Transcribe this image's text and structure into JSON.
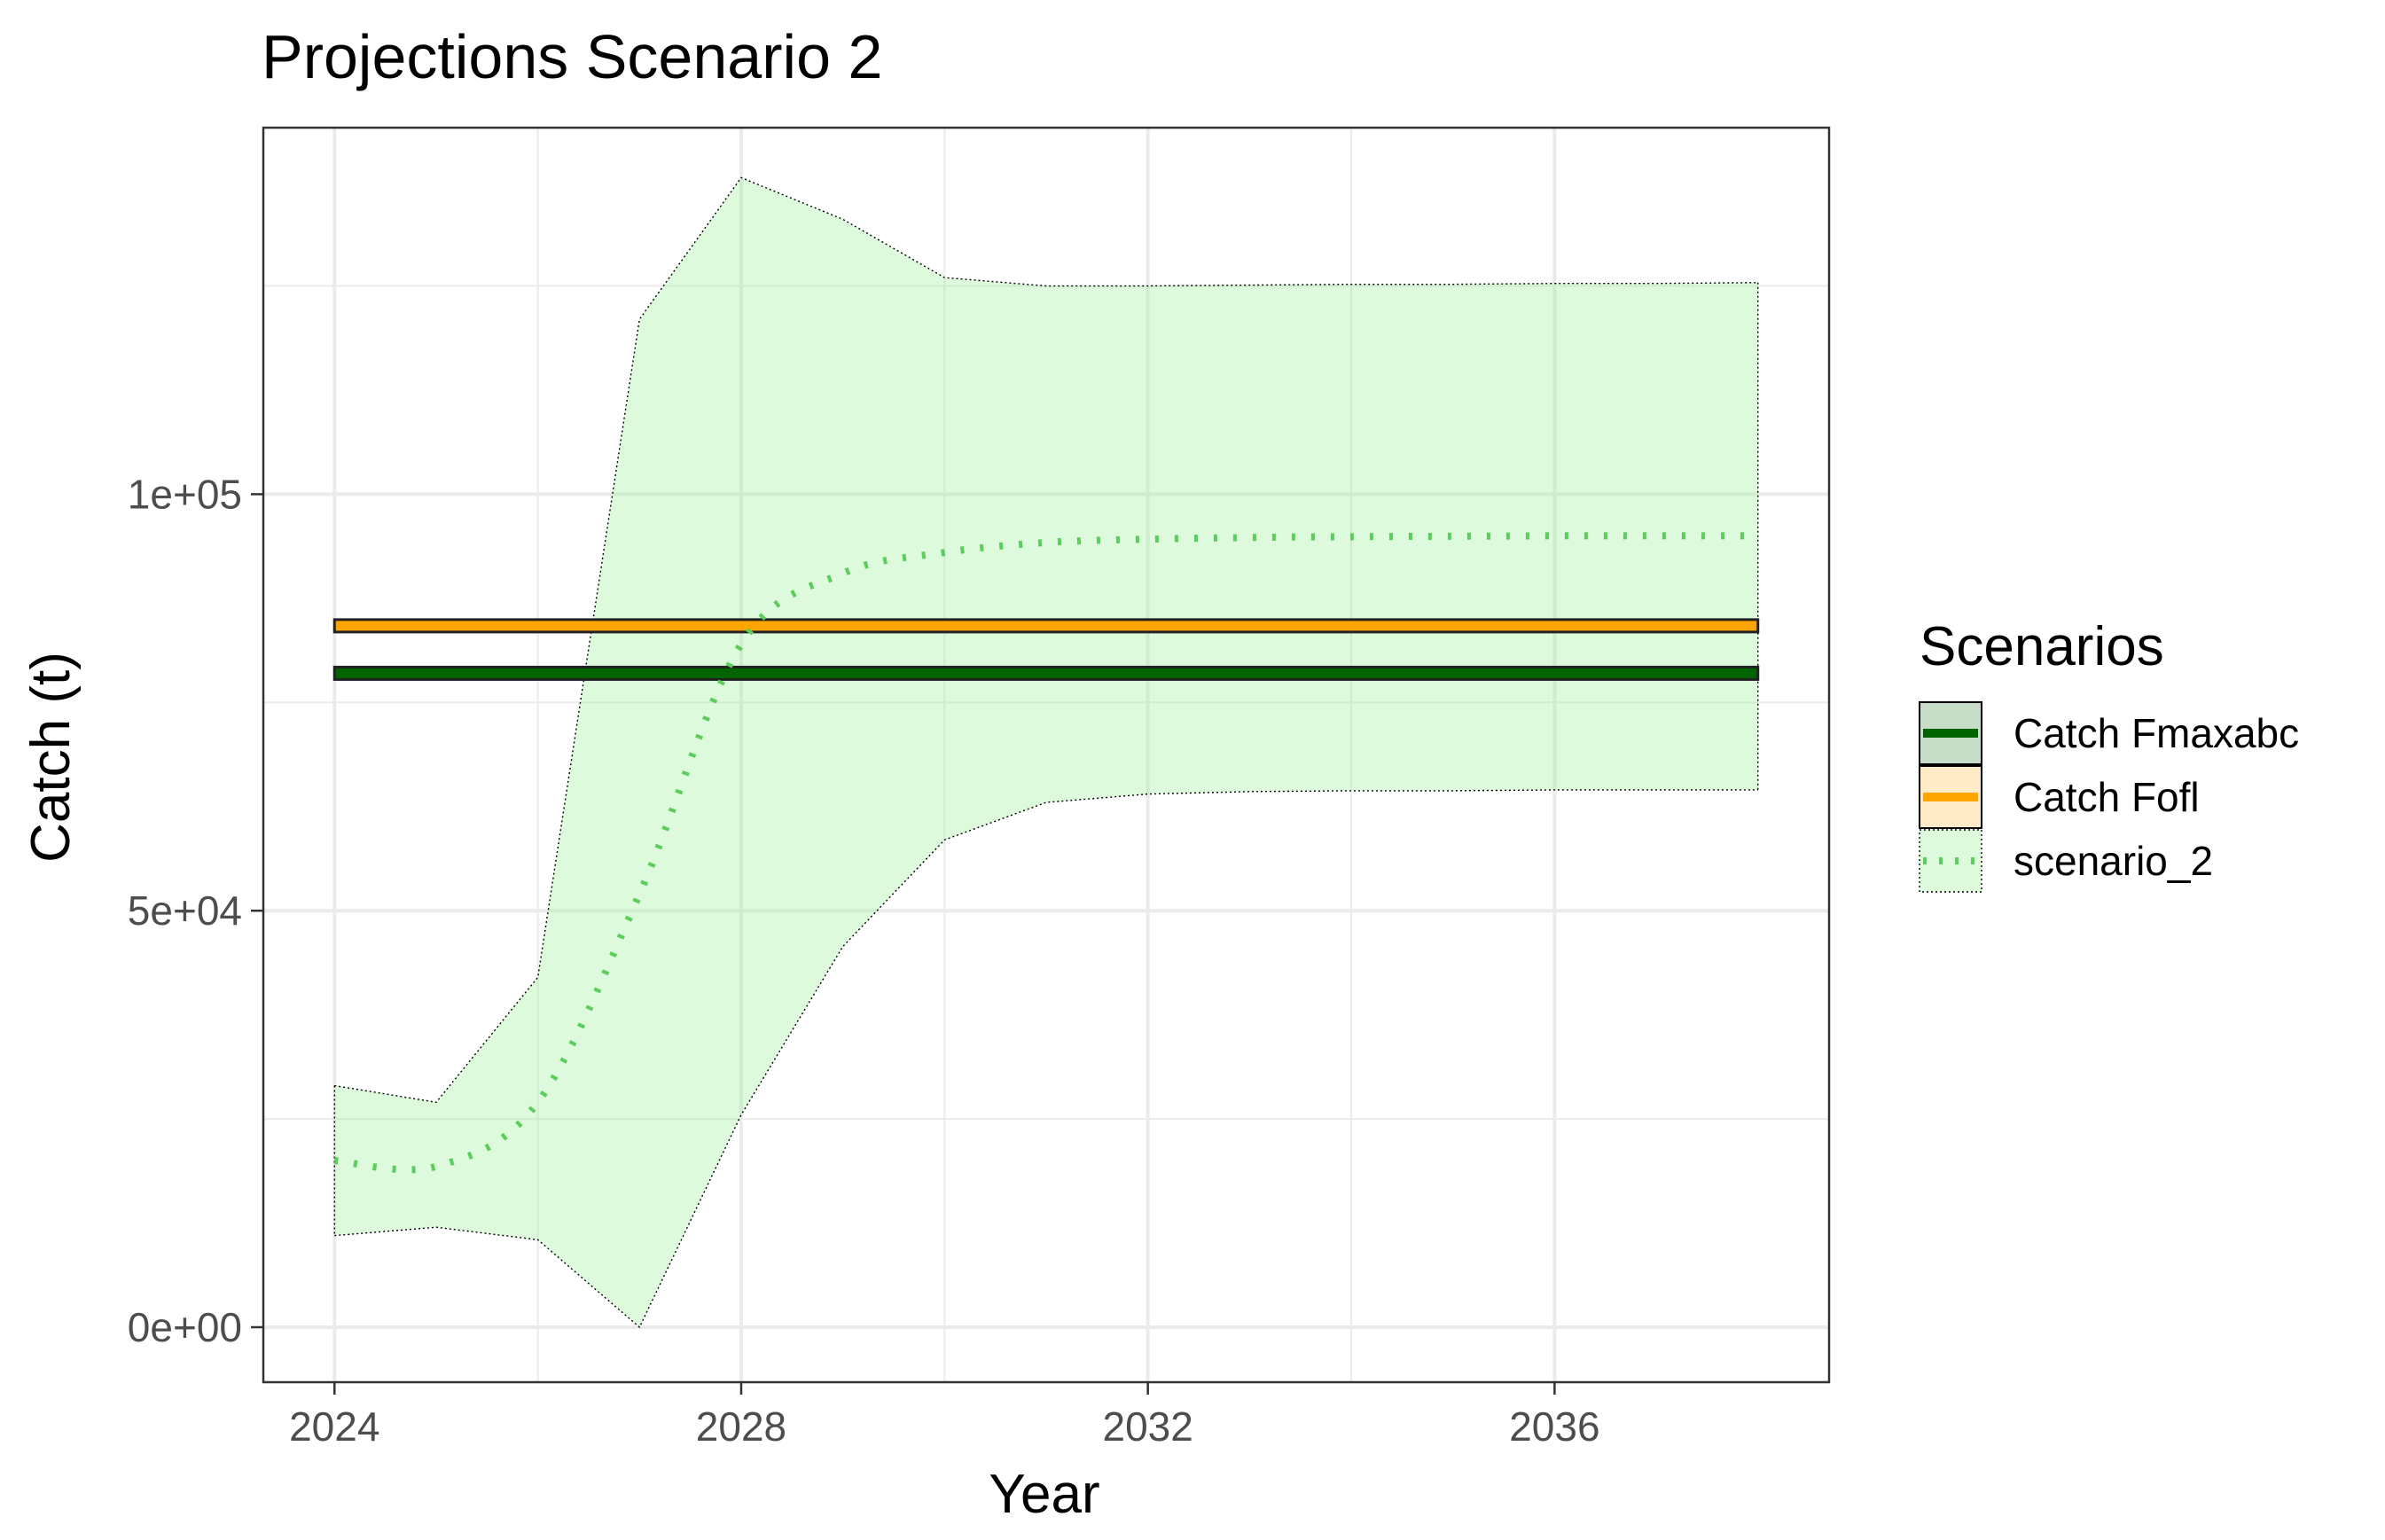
{
  "chart_data": {
    "type": "line",
    "title": "Projections Scenario 2",
    "xlabel": "Year",
    "ylabel": "Catch (t)",
    "xlim": [
      2023.3,
      2038.7
    ],
    "ylim": [
      -6600,
      144000
    ],
    "x_ticks": [
      2024,
      2028,
      2032,
      2036
    ],
    "x_tick_labels": [
      "2024",
      "2028",
      "2032",
      "2036"
    ],
    "y_ticks": [
      0,
      50000,
      100000
    ],
    "y_tick_labels": [
      "0e+00",
      "5e+04",
      "1e+05"
    ],
    "grid": true,
    "legend_position": "right",
    "legend_title": "Scenarios",
    "series": [
      {
        "name": "Catch Fmaxabc",
        "kind": "hline",
        "color": "#006400",
        "y": 78500,
        "x_range": [
          2024,
          2038
        ]
      },
      {
        "name": "Catch Fofl",
        "kind": "hline",
        "color": "#FFA500",
        "y": 84200,
        "x_range": [
          2024,
          2038
        ]
      },
      {
        "name": "scenario_2",
        "kind": "line_with_ribbon",
        "color": "#5ACD5A",
        "ribbon_color": "#90EE90",
        "x": [
          2024,
          2025,
          2026,
          2027,
          2028,
          2029,
          2030,
          2031,
          2032,
          2033,
          2034,
          2035,
          2036,
          2037,
          2038
        ],
        "y": [
          20000,
          19300,
          27000,
          52000,
          82000,
          90500,
          93000,
          94200,
          94600,
          94800,
          94900,
          94950,
          95000,
          95000,
          95000
        ],
        "lower": [
          11000,
          12000,
          10500,
          0,
          25500,
          45700,
          58500,
          63000,
          64000,
          64300,
          64400,
          64400,
          64500,
          64500,
          64500
        ],
        "upper": [
          29000,
          27000,
          42000,
          121000,
          138000,
          133000,
          126000,
          125000,
          125000,
          125100,
          125200,
          125200,
          125300,
          125300,
          125400
        ]
      }
    ]
  }
}
